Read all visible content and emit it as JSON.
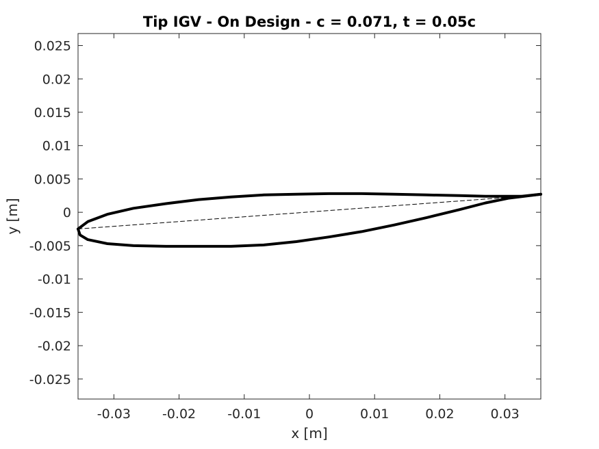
{
  "chart_data": {
    "type": "line",
    "title": "Tip IGV - On Design  - c = 0.071, t = 0.05c",
    "xlabel": "x [m]",
    "ylabel": "y [m]",
    "xlim": [
      -0.0355,
      0.0355
    ],
    "ylim": [
      -0.028,
      0.0268
    ],
    "grid": false,
    "x_ticks": [
      -0.03,
      -0.02,
      -0.01,
      0,
      0.01,
      0.02,
      0.03
    ],
    "x_tick_labels": [
      "-0.03",
      "-0.02",
      "-0.01",
      "0",
      "0.01",
      "0.02",
      "0.03"
    ],
    "y_ticks": [
      0.025,
      0.02,
      0.015,
      0.01,
      0.005,
      0,
      -0.005,
      -0.01,
      -0.015,
      -0.02,
      -0.025
    ],
    "y_tick_labels": [
      "0.025",
      "0.02",
      "0.015",
      "0.01",
      "0.005",
      "0",
      "-0.005",
      "-0.01",
      "-0.015",
      "-0.02",
      "-0.025"
    ],
    "series": [
      {
        "style": "solid-thick",
        "color": "#000000",
        "x": [
          -0.0355,
          -0.034,
          -0.031,
          -0.027,
          -0.022,
          -0.017,
          -0.012,
          -0.007,
          -0.002,
          0.003,
          0.008,
          0.013,
          0.018,
          0.023,
          0.027,
          0.03,
          0.0325,
          0.0355
        ],
        "y": [
          -0.0025,
          -0.0014,
          -0.0003,
          0.0006,
          0.0013,
          0.0019,
          0.0023,
          0.0026,
          0.0027,
          0.0028,
          0.0028,
          0.0027,
          0.0026,
          0.0025,
          0.0024,
          0.0024,
          0.0024,
          0.0027
        ]
      },
      {
        "style": "solid-thick",
        "color": "#000000",
        "x": [
          -0.0355,
          -0.0352,
          -0.034,
          -0.031,
          -0.027,
          -0.022,
          -0.017,
          -0.012,
          -0.007,
          -0.002,
          0.003,
          0.008,
          0.013,
          0.018,
          0.023,
          0.027,
          0.0305,
          0.0355
        ],
        "y": [
          -0.0025,
          -0.0034,
          -0.0041,
          -0.0047,
          -0.005,
          -0.0051,
          -0.0051,
          -0.0051,
          -0.0049,
          -0.0044,
          -0.0037,
          -0.0029,
          -0.0019,
          -0.0008,
          0.0004,
          0.0014,
          0.0021,
          0.0027
        ]
      },
      {
        "style": "dashed",
        "color": "#000000",
        "x": [
          -0.0355,
          0.0315
        ],
        "y": [
          -0.0025,
          0.0023
        ]
      }
    ]
  }
}
